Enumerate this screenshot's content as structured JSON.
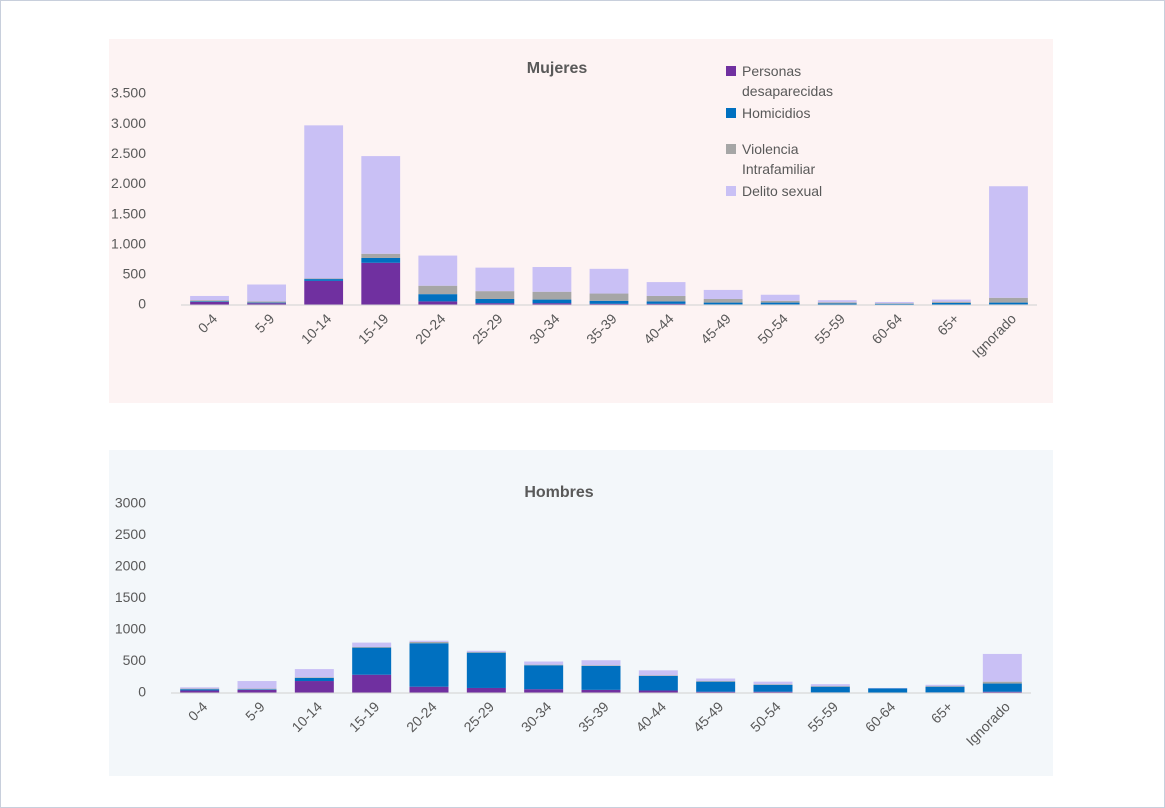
{
  "chart_data": [
    {
      "type": "stacked_bar",
      "title": "Mujeres",
      "categories": [
        "0-4",
        "5-9",
        "10-14",
        "15-19",
        "20-24",
        "25-29",
        "30-34",
        "35-39",
        "40-44",
        "45-49",
        "50-54",
        "55-59",
        "60-64",
        "65+",
        "Ignorado"
      ],
      "series": [
        {
          "name": "Personas desaparecidas",
          "color": "#7030a0",
          "values": [
            50,
            30,
            400,
            700,
            60,
            30,
            30,
            20,
            20,
            10,
            10,
            5,
            5,
            5,
            10
          ]
        },
        {
          "name": "Homicidios",
          "color": "#0070c0",
          "values": [
            10,
            10,
            30,
            80,
            120,
            70,
            60,
            50,
            40,
            30,
            30,
            20,
            15,
            30,
            30
          ]
        },
        {
          "name": "Violencia Intrafamiliar",
          "color": "#a6a6a6",
          "values": [
            20,
            20,
            10,
            70,
            140,
            130,
            130,
            120,
            90,
            60,
            30,
            20,
            10,
            20,
            80
          ]
        },
        {
          "name": "Delito sexual",
          "color": "#c9c0f5",
          "values": [
            70,
            280,
            2540,
            1620,
            500,
            390,
            410,
            410,
            230,
            150,
            100,
            35,
            20,
            35,
            1850
          ]
        }
      ],
      "ylim": [
        0,
        3500
      ],
      "yticks": [
        0,
        500,
        {
          "value": 1000,
          "label": "1.000"
        },
        {
          "value": 1500,
          "label": "1.500"
        },
        {
          "value": 2000,
          "label": "2.000"
        },
        {
          "value": 2500,
          "label": "2.500"
        },
        {
          "value": 3000,
          "label": "3.000"
        },
        {
          "value": 3500,
          "label": "3.500"
        }
      ],
      "grid": false,
      "legend": "top-right"
    },
    {
      "type": "stacked_bar",
      "title": "Hombres",
      "categories": [
        "0-4",
        "5-9",
        "10-14",
        "15-19",
        "20-24",
        "25-29",
        "30-34",
        "35-39",
        "40-44",
        "45-49",
        "50-54",
        "55-59",
        "60-64",
        "65+",
        "Ignorado"
      ],
      "series": [
        {
          "color": "#7030a0",
          "values": [
            40,
            50,
            190,
            290,
            100,
            80,
            60,
            50,
            40,
            20,
            20,
            10,
            5,
            10,
            20
          ]
        },
        {
          "color": "#0070c0",
          "values": [
            20,
            10,
            50,
            430,
            690,
            560,
            380,
            380,
            230,
            160,
            110,
            90,
            70,
            90,
            130
          ]
        },
        {
          "color": "#a6a6a6",
          "values": [
            10,
            10,
            10,
            10,
            20,
            10,
            10,
            10,
            10,
            10,
            10,
            10,
            0,
            10,
            30
          ]
        },
        {
          "color": "#c9c0f5",
          "values": [
            20,
            120,
            130,
            70,
            20,
            20,
            50,
            80,
            80,
            40,
            40,
            30,
            5,
            20,
            440
          ]
        }
      ],
      "ylim": [
        0,
        3000
      ],
      "yticks": [
        0,
        500,
        1000,
        1500,
        2000,
        2500,
        3000
      ],
      "grid": false
    }
  ]
}
